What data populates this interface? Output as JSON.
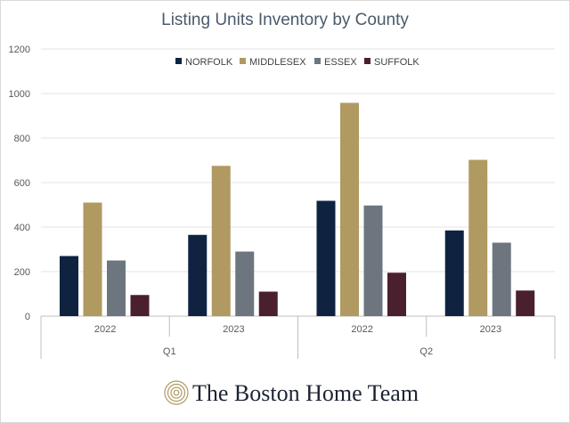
{
  "chart_data": {
    "type": "bar",
    "title": "Listing Units Inventory by County",
    "xlabel": "",
    "ylabel": "",
    "ylim": [
      0,
      1200
    ],
    "yticks": [
      0,
      200,
      400,
      600,
      800,
      1000,
      1200
    ],
    "grid": true,
    "legend_position": "top",
    "groups": [
      {
        "label": "Q1",
        "categories": [
          "2022",
          "2023"
        ]
      },
      {
        "label": "Q2",
        "categories": [
          "2022",
          "2023"
        ]
      }
    ],
    "categories": [
      "2022",
      "2023",
      "2022",
      "2023"
    ],
    "series": [
      {
        "name": "NORFOLK",
        "color": "#0f2341",
        "values": [
          270,
          365,
          518,
          385
        ]
      },
      {
        "name": "MIDDLESEX",
        "color": "#b09a62",
        "values": [
          510,
          675,
          958,
          702
        ]
      },
      {
        "name": "ESSEX",
        "color": "#6d767e",
        "values": [
          250,
          290,
          497,
          330
        ]
      },
      {
        "name": "SUFFOLK",
        "color": "#4a1f2e",
        "values": [
          95,
          110,
          195,
          115
        ]
      }
    ]
  },
  "brand": {
    "name": "The Boston Home Team",
    "icon": "swirl-logo-icon",
    "color": "#b09a62"
  }
}
